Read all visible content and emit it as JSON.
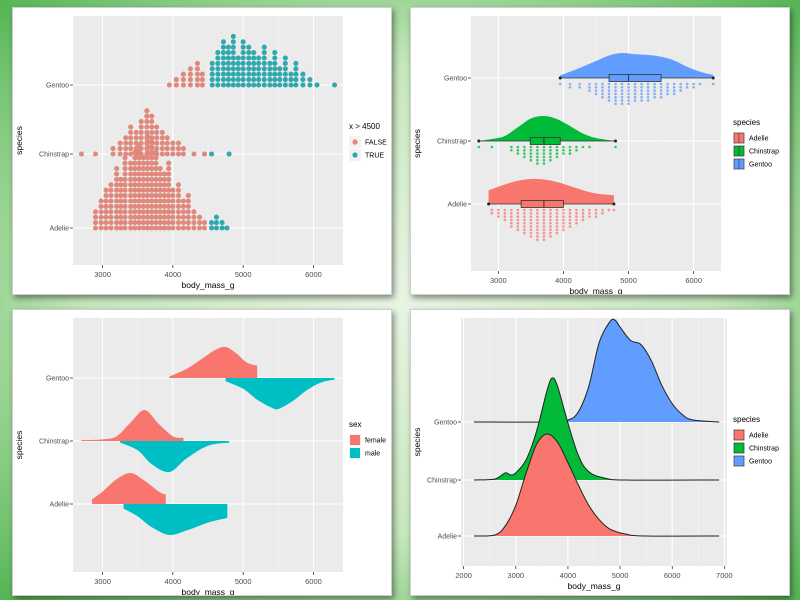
{
  "chart_data": [
    {
      "type": "scatter",
      "subtype": "dotplot",
      "xlabel": "body_mass_g",
      "ylabel": "species",
      "xlim": [
        2580,
        6420
      ],
      "x_ticks": [
        "3000",
        "4000",
        "5000",
        "6000"
      ],
      "categories": [
        "Adelie",
        "Chinstrap",
        "Gentoo"
      ],
      "legend": {
        "title": "x > 4500",
        "entries": [
          "FALSE",
          "TRUE"
        ],
        "colors": [
          "#E0887C",
          "#2FA9AE"
        ],
        "placement": "right"
      },
      "threshold": 4500,
      "series": [
        {
          "category": "Adelie",
          "bins": [
            [
              2900,
              4
            ],
            [
              2980,
              6
            ],
            [
              3050,
              8
            ],
            [
              3120,
              9
            ],
            [
              3200,
              12
            ],
            [
              3260,
              10
            ],
            [
              3320,
              14
            ],
            [
              3400,
              13
            ],
            [
              3460,
              15
            ],
            [
              3520,
              16
            ],
            [
              3580,
              14
            ],
            [
              3640,
              18
            ],
            [
              3700,
              17
            ],
            [
              3760,
              15
            ],
            [
              3820,
              12
            ],
            [
              3880,
              11
            ],
            [
              3940,
              13
            ],
            [
              4000,
              8
            ],
            [
              4080,
              9
            ],
            [
              4150,
              6
            ],
            [
              4220,
              7
            ],
            [
              4300,
              4
            ],
            [
              4380,
              3
            ],
            [
              4450,
              2
            ],
            [
              4550,
              2
            ],
            [
              4620,
              3
            ],
            [
              4700,
              2
            ],
            [
              4770,
              1
            ]
          ]
        },
        {
          "category": "Chinstrap",
          "bins": [
            [
              2700,
              1
            ],
            [
              2900,
              1
            ],
            [
              3150,
              2
            ],
            [
              3250,
              3
            ],
            [
              3330,
              4
            ],
            [
              3400,
              6
            ],
            [
              3480,
              5
            ],
            [
              3550,
              7
            ],
            [
              3630,
              9
            ],
            [
              3700,
              8
            ],
            [
              3770,
              6
            ],
            [
              3850,
              5
            ],
            [
              3920,
              4
            ],
            [
              4000,
              3
            ],
            [
              4080,
              3
            ],
            [
              4150,
              2
            ],
            [
              4300,
              1
            ],
            [
              4450,
              1
            ],
            [
              4550,
              1
            ],
            [
              4800,
              1
            ]
          ]
        },
        {
          "category": "Gentoo",
          "bins": [
            [
              3950,
              1
            ],
            [
              4050,
              2
            ],
            [
              4150,
              3
            ],
            [
              4250,
              4
            ],
            [
              4350,
              5
            ],
            [
              4420,
              3
            ],
            [
              4560,
              5
            ],
            [
              4640,
              7
            ],
            [
              4720,
              9
            ],
            [
              4790,
              8
            ],
            [
              4860,
              10
            ],
            [
              4930,
              6
            ],
            [
              5000,
              9
            ],
            [
              5080,
              8
            ],
            [
              5150,
              7
            ],
            [
              5220,
              6
            ],
            [
              5300,
              8
            ],
            [
              5380,
              5
            ],
            [
              5450,
              7
            ],
            [
              5520,
              4
            ],
            [
              5600,
              6
            ],
            [
              5680,
              3
            ],
            [
              5750,
              5
            ],
            [
              5850,
              3
            ],
            [
              5950,
              2
            ],
            [
              6050,
              1
            ],
            [
              6300,
              1
            ]
          ]
        }
      ]
    },
    {
      "type": "area",
      "subtype": "raincloud",
      "xlabel": "body_mass_g",
      "ylabel": "species",
      "xlim": [
        2580,
        6420
      ],
      "x_ticks": [
        "3000",
        "4000",
        "5000",
        "6000"
      ],
      "categories": [
        "Adelie",
        "Chinstrap",
        "Gentoo"
      ],
      "legend": {
        "title": "species",
        "entries": [
          "Adelie",
          "Chinstrap",
          "Gentoo"
        ],
        "colors": [
          "#F8766D",
          "#00BA38",
          "#619CFF"
        ],
        "placement": "right"
      },
      "series": [
        {
          "name": "Adelie",
          "color": "#F8766D",
          "min": 2850,
          "max": 4775,
          "q1": 3350,
          "median": 3700,
          "q3": 4000,
          "density_x": [
            2850,
            3100,
            3300,
            3500,
            3700,
            3900,
            4100,
            4300,
            4500,
            4775
          ],
          "density_y": [
            0.55,
            0.78,
            0.93,
            1.0,
            0.98,
            0.88,
            0.72,
            0.55,
            0.42,
            0.35
          ],
          "dot_bins": [
            [
              2900,
              2
            ],
            [
              3000,
              3
            ],
            [
              3100,
              4
            ],
            [
              3200,
              6
            ],
            [
              3300,
              7
            ],
            [
              3400,
              8
            ],
            [
              3500,
              9
            ],
            [
              3600,
              10
            ],
            [
              3700,
              10
            ],
            [
              3800,
              9
            ],
            [
              3900,
              8
            ],
            [
              4000,
              7
            ],
            [
              4100,
              6
            ],
            [
              4200,
              5
            ],
            [
              4300,
              4
            ],
            [
              4400,
              3
            ],
            [
              4500,
              3
            ],
            [
              4600,
              2
            ],
            [
              4700,
              1
            ],
            [
              4775,
              1
            ]
          ]
        },
        {
          "name": "Chinstrap",
          "color": "#00BA38",
          "min": 2700,
          "max": 4800,
          "q1": 3490,
          "median": 3700,
          "q3": 3950,
          "density_x": [
            2700,
            2900,
            3100,
            3300,
            3500,
            3700,
            3900,
            4100,
            4300,
            4500,
            4800
          ],
          "density_y": [
            0.0,
            0.08,
            0.2,
            0.55,
            0.9,
            1.0,
            0.88,
            0.6,
            0.3,
            0.12,
            0.0
          ],
          "dot_bins": [
            [
              2700,
              1
            ],
            [
              2900,
              1
            ],
            [
              3200,
              2
            ],
            [
              3300,
              3
            ],
            [
              3400,
              4
            ],
            [
              3500,
              5
            ],
            [
              3600,
              6
            ],
            [
              3700,
              6
            ],
            [
              3800,
              5
            ],
            [
              3900,
              4
            ],
            [
              4000,
              3
            ],
            [
              4100,
              3
            ],
            [
              4200,
              2
            ],
            [
              4300,
              1
            ],
            [
              4400,
              1
            ],
            [
              4800,
              1
            ]
          ]
        },
        {
          "name": "Gentoo",
          "color": "#619CFF",
          "min": 3950,
          "max": 6300,
          "q1": 4700,
          "median": 5000,
          "q3": 5500,
          "density_x": [
            3950,
            4200,
            4450,
            4700,
            4900,
            5100,
            5300,
            5500,
            5700,
            5900,
            6100,
            6300
          ],
          "density_y": [
            0.1,
            0.35,
            0.62,
            0.9,
            1.0,
            0.95,
            0.92,
            0.85,
            0.7,
            0.45,
            0.25,
            0.12
          ],
          "dot_bins": [
            [
              3950,
              1
            ],
            [
              4100,
              2
            ],
            [
              4250,
              2
            ],
            [
              4400,
              3
            ],
            [
              4500,
              4
            ],
            [
              4600,
              5
            ],
            [
              4700,
              6
            ],
            [
              4800,
              7
            ],
            [
              4900,
              7
            ],
            [
              5000,
              7
            ],
            [
              5100,
              6
            ],
            [
              5200,
              6
            ],
            [
              5300,
              6
            ],
            [
              5400,
              5
            ],
            [
              5500,
              5
            ],
            [
              5600,
              4
            ],
            [
              5700,
              4
            ],
            [
              5800,
              3
            ],
            [
              5900,
              2
            ],
            [
              6000,
              2
            ],
            [
              6100,
              1
            ],
            [
              6300,
              1
            ]
          ]
        }
      ]
    },
    {
      "type": "area",
      "subtype": "split-violin",
      "xlabel": "body_mass_g",
      "ylabel": "species",
      "xlim": [
        2580,
        6420
      ],
      "x_ticks": [
        "3000",
        "4000",
        "5000",
        "6000"
      ],
      "categories": [
        "Adelie",
        "Chinstrap",
        "Gentoo"
      ],
      "legend": {
        "title": "sex",
        "entries": [
          "female",
          "male"
        ],
        "colors": [
          "#F8766D",
          "#00BFC4"
        ],
        "placement": "right"
      },
      "series": [
        {
          "category": "Adelie",
          "sex": "female",
          "x": [
            2850,
            3000,
            3200,
            3400,
            3600,
            3800,
            3900
          ],
          "y": [
            0.15,
            0.4,
            0.8,
            1.0,
            0.75,
            0.4,
            0.3
          ]
        },
        {
          "category": "Adelie",
          "sex": "male",
          "x": [
            3300,
            3500,
            3700,
            3950,
            4200,
            4500,
            4775
          ],
          "y": [
            0.15,
            0.4,
            0.75,
            1.0,
            0.85,
            0.6,
            0.45
          ]
        },
        {
          "category": "Chinstrap",
          "sex": "female",
          "x": [
            2700,
            3000,
            3200,
            3400,
            3600,
            3800,
            4000,
            4150
          ],
          "y": [
            0.03,
            0.05,
            0.15,
            0.6,
            1.0,
            0.55,
            0.15,
            0.1
          ]
        },
        {
          "category": "Chinstrap",
          "sex": "male",
          "x": [
            3250,
            3500,
            3700,
            3950,
            4200,
            4500,
            4800
          ],
          "y": [
            0.05,
            0.3,
            0.75,
            1.0,
            0.55,
            0.15,
            0.05
          ]
        },
        {
          "category": "Gentoo",
          "sex": "female",
          "x": [
            3950,
            4200,
            4400,
            4600,
            4750,
            4900,
            5050,
            5200
          ],
          "y": [
            0.05,
            0.3,
            0.6,
            0.9,
            1.0,
            0.8,
            0.5,
            0.4
          ]
        },
        {
          "category": "Gentoo",
          "sex": "male",
          "x": [
            4750,
            5000,
            5200,
            5400,
            5500,
            5700,
            5900,
            6100,
            6300
          ],
          "y": [
            0.1,
            0.35,
            0.7,
            0.95,
            1.0,
            0.75,
            0.4,
            0.15,
            0.05
          ]
        }
      ]
    },
    {
      "type": "area",
      "subtype": "ridgeline",
      "xlabel": "body_mass_g",
      "ylabel": "species",
      "xlim": [
        1950,
        7050
      ],
      "x_ticks": [
        "2000",
        "3000",
        "4000",
        "5000",
        "6000",
        "7000"
      ],
      "categories": [
        "Adelie",
        "Chinstrap",
        "Gentoo"
      ],
      "legend": {
        "title": "species",
        "entries": [
          "Adelie",
          "Chinstrap",
          "Gentoo"
        ],
        "colors": [
          "#F8766D",
          "#00BA38",
          "#619CFF"
        ],
        "placement": "right"
      },
      "series": [
        {
          "name": "Adelie",
          "x": [
            2200,
            2600,
            2800,
            3000,
            3200,
            3400,
            3600,
            3800,
            4000,
            4200,
            4400,
            4600,
            4800,
            5100,
            5500,
            6900
          ],
          "y": [
            0,
            0.01,
            0.1,
            0.3,
            0.62,
            0.9,
            1.0,
            0.92,
            0.72,
            0.5,
            0.3,
            0.16,
            0.07,
            0.02,
            0,
            0
          ]
        },
        {
          "name": "Chinstrap",
          "x": [
            2200,
            2600,
            2800,
            2900,
            3000,
            3200,
            3400,
            3600,
            3700,
            3800,
            4000,
            4200,
            4400,
            4700,
            5100,
            6900
          ],
          "y": [
            0,
            0.01,
            0.07,
            0.05,
            0.07,
            0.2,
            0.48,
            0.88,
            1.0,
            0.92,
            0.56,
            0.24,
            0.08,
            0.02,
            0,
            0
          ]
        },
        {
          "name": "Gentoo",
          "x": [
            2200,
            3600,
            4000,
            4200,
            4400,
            4600,
            4800,
            4900,
            5000,
            5200,
            5400,
            5600,
            5800,
            6000,
            6200,
            6400,
            6900
          ],
          "y": [
            0,
            0,
            0.02,
            0.1,
            0.35,
            0.78,
            0.98,
            1.0,
            0.93,
            0.8,
            0.76,
            0.6,
            0.36,
            0.18,
            0.07,
            0.02,
            0
          ]
        }
      ]
    }
  ]
}
